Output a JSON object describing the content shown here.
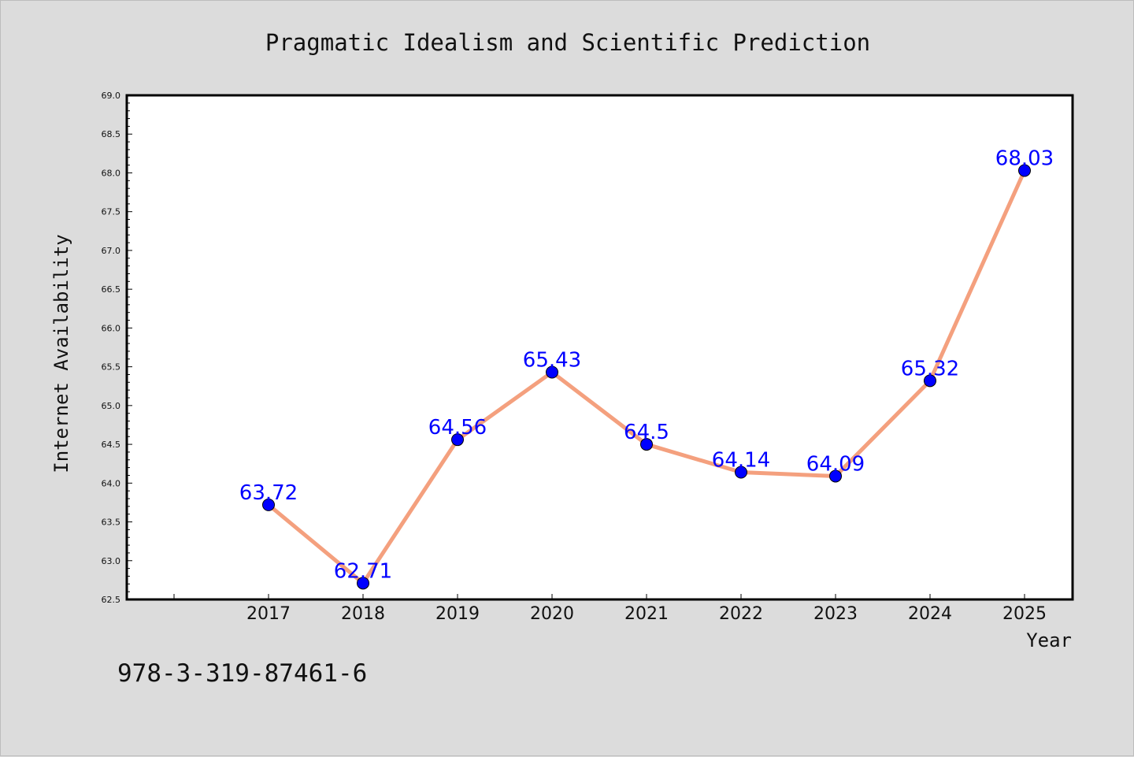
{
  "chart_data": {
    "type": "line",
    "title": "Pragmatic Idealism and Scientific Prediction",
    "xlabel": "Year",
    "ylabel": "Internet Availability",
    "categories": [
      "2017",
      "2018",
      "2019",
      "2020",
      "2021",
      "2022",
      "2023",
      "2024",
      "2025"
    ],
    "values": [
      63.72,
      62.71,
      64.56,
      65.43,
      64.5,
      64.14,
      64.09,
      65.32,
      68.03
    ],
    "data_labels": [
      "63.72",
      "62.71",
      "64.56",
      "65.43",
      "64.5",
      "64.14",
      "64.09",
      "65.32",
      "68.03"
    ],
    "ylim": [
      62.5,
      69.0
    ],
    "yticks": [
      62.5,
      63.0,
      63.5,
      64.0,
      64.5,
      65.0,
      65.5,
      66.0,
      66.5,
      67.0,
      67.5,
      68.0,
      68.5,
      69.0
    ],
    "ytick_labels": [
      "62.5",
      "63.0",
      "63.5",
      "64.0",
      "64.5",
      "65.0",
      "65.5",
      "66.0",
      "66.5",
      "67.0",
      "67.5",
      "68.0",
      "68.5",
      "69.0"
    ],
    "grid": false,
    "legend": "none",
    "colors": {
      "line": "#f4a07e",
      "marker": "#0000ff",
      "data_label": "#0000ff",
      "plot_background": "#ffffff",
      "figure_background": "#dcdcdc"
    }
  },
  "footer": {
    "isbn": "978-3-319-87461-6"
  }
}
